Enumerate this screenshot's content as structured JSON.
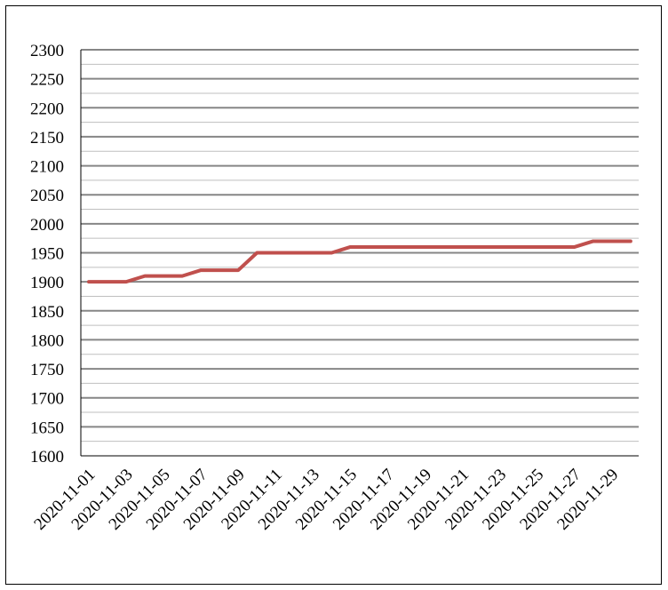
{
  "chart_data": {
    "type": "line",
    "title": "",
    "xlabel": "",
    "ylabel": "",
    "ylim": [
      1600,
      2300
    ],
    "y_major_step": 50,
    "y_minor_step": 25,
    "grid": true,
    "legend": "none",
    "line_color": "#C0504D",
    "x": [
      "2020-11-01",
      "2020-11-02",
      "2020-11-03",
      "2020-11-04",
      "2020-11-05",
      "2020-11-06",
      "2020-11-07",
      "2020-11-08",
      "2020-11-09",
      "2020-11-10",
      "2020-11-11",
      "2020-11-12",
      "2020-11-13",
      "2020-11-14",
      "2020-11-15",
      "2020-11-16",
      "2020-11-17",
      "2020-11-18",
      "2020-11-19",
      "2020-11-20",
      "2020-11-21",
      "2020-11-22",
      "2020-11-23",
      "2020-11-24",
      "2020-11-25",
      "2020-11-26",
      "2020-11-27",
      "2020-11-28",
      "2020-11-29",
      "2020-11-30"
    ],
    "values": [
      1900,
      1900,
      1900,
      1910,
      1910,
      1910,
      1920,
      1920,
      1920,
      1950,
      1950,
      1950,
      1950,
      1950,
      1960,
      1960,
      1960,
      1960,
      1960,
      1960,
      1960,
      1960,
      1960,
      1960,
      1960,
      1960,
      1960,
      1970,
      1970,
      1970
    ],
    "x_tick_labels": [
      "2020-11-01",
      "2020-11-03",
      "2020-11-05",
      "2020-11-07",
      "2020-11-09",
      "2020-11-11",
      "2020-11-13",
      "2020-11-15",
      "2020-11-17",
      "2020-11-19",
      "2020-11-21",
      "2020-11-23",
      "2020-11-25",
      "2020-11-27",
      "2020-11-29"
    ],
    "y_tick_labels": [
      "1600",
      "1650",
      "1700",
      "1750",
      "1800",
      "1850",
      "1900",
      "1950",
      "2000",
      "2050",
      "2100",
      "2150",
      "2200",
      "2250",
      "2300"
    ]
  }
}
